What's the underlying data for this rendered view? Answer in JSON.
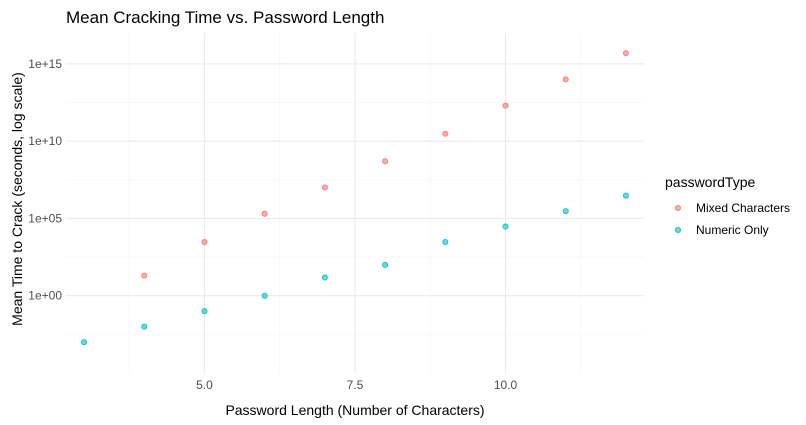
{
  "chart_data": {
    "type": "scatter",
    "title": "Mean Cracking Time vs. Password Length",
    "xlabel": "Password Length (Number of Characters)",
    "ylabel": "Mean Time to Crack (seconds, log scale)",
    "x_scale": "linear",
    "y_scale": "log10",
    "xlim": [
      2.7,
      12.3
    ],
    "ylim": [
      1e-05,
      1e+17
    ],
    "x_ticks": [
      5.0,
      7.5,
      10.0
    ],
    "x_tick_labels": [
      "5.0",
      "7.5",
      "10.0"
    ],
    "y_ticks": [
      1,
      100000,
      10000000000,
      1000000000000000.0
    ],
    "y_tick_labels": [
      "1e+00",
      "1e+05",
      "1e+10",
      "1e+15"
    ],
    "grid": true,
    "legend": {
      "title": "passwordType",
      "position": "right"
    },
    "series": [
      {
        "name": "Mixed Characters",
        "color": "#F8766D",
        "x": [
          4,
          5,
          6,
          7,
          8,
          9,
          10,
          11,
          12
        ],
        "y": [
          20,
          3000,
          200000,
          10000000,
          500000000,
          30000000000,
          2000000000000,
          100000000000000,
          5000000000000000
        ]
      },
      {
        "name": "Numeric Only",
        "color": "#00BFC4",
        "x": [
          3,
          4,
          5,
          6,
          7,
          8,
          9,
          10,
          11,
          12
        ],
        "y": [
          0.001,
          0.01,
          0.1,
          1,
          15,
          100,
          3000,
          30000,
          300000,
          3000000
        ]
      }
    ]
  }
}
